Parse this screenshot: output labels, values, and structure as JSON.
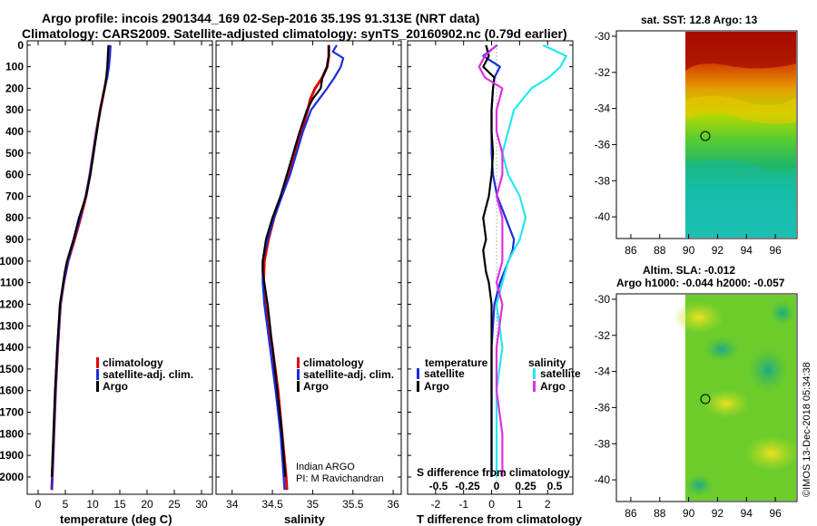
{
  "header": {
    "line1": "Argo profile: incois 2901344_169 02-Sep-2016 35.19S 91.313E (NRT data)",
    "line2": "Climatology: CARS2009. Satellite-adjusted climatology: synTS_20160902.nc (0.79d earlier)"
  },
  "colors": {
    "climatology": "#e00000",
    "satellite": "#1a2de0",
    "argo": "#000000",
    "sat_salinity": "#22e8ee",
    "argo_salinity": "#e030e0"
  },
  "depth_ticks": [
    "0",
    "100",
    "200",
    "300",
    "400",
    "500",
    "600",
    "700",
    "800",
    "900",
    "1000",
    "1100",
    "1200",
    "1300",
    "1400",
    "1500",
    "1600",
    "1700",
    "1800",
    "1900",
    "2000"
  ],
  "chart_data": [
    {
      "type": "line",
      "id": "temperature",
      "xlabel": "temperature (deg C)",
      "ylabel": "depth",
      "xlim": [
        -2,
        32
      ],
      "ylim": [
        2080,
        -20
      ],
      "xticks": [
        "0",
        "5",
        "10",
        "15",
        "20",
        "25",
        "30"
      ],
      "legend": [
        "climatology",
        "satellite-adj. clim.",
        "Argo"
      ],
      "series": [
        {
          "name": "climatology",
          "depth": [
            0,
            50,
            100,
            150,
            200,
            250,
            300,
            400,
            500,
            600,
            700,
            800,
            900,
            1000,
            1100,
            1200,
            1400,
            1600,
            1800,
            2000,
            2060
          ],
          "values": [
            13.1,
            13.0,
            12.9,
            12.6,
            12.2,
            11.8,
            11.4,
            10.7,
            10.1,
            9.5,
            8.8,
            7.8,
            6.7,
            5.5,
            4.7,
            4.1,
            3.6,
            3.2,
            2.9,
            2.6,
            2.5
          ]
        },
        {
          "name": "satellite-adj. clim.",
          "depth": [
            0,
            50,
            100,
            150,
            200,
            250,
            300,
            400,
            500,
            600,
            700,
            800,
            900,
            1000,
            1100,
            1200,
            1400,
            1600,
            1800,
            2000,
            2060
          ],
          "values": [
            13.3,
            13.2,
            13.0,
            12.7,
            12.2,
            11.8,
            11.4,
            10.7,
            10.1,
            9.5,
            8.7,
            7.7,
            6.6,
            5.5,
            4.7,
            4.1,
            3.6,
            3.2,
            2.9,
            2.6,
            2.5
          ]
        },
        {
          "name": "Argo",
          "depth": [
            0,
            50,
            100,
            150,
            200,
            250,
            300,
            400,
            500,
            600,
            700,
            800,
            900,
            1000,
            1050,
            1100,
            1200,
            1400,
            1600,
            1800,
            2000
          ],
          "values": [
            12.9,
            12.8,
            12.7,
            12.5,
            12.2,
            11.8,
            11.4,
            10.8,
            10.2,
            9.6,
            8.8,
            7.5,
            6.5,
            5.3,
            4.9,
            4.6,
            4.0,
            3.5,
            3.1,
            2.8,
            2.5
          ]
        }
      ]
    },
    {
      "type": "line",
      "id": "salinity",
      "xlabel": "salinity",
      "xlim": [
        33.8,
        36.1
      ],
      "ylim": [
        2080,
        -20
      ],
      "xticks": [
        "34",
        "34.5",
        "35",
        "35.5",
        "36"
      ],
      "legend": [
        "climatology",
        "satellite-adj. clim.",
        "Argo"
      ],
      "annotations": [
        "Indian ARGO",
        "PI: M Ravichandran"
      ],
      "series": [
        {
          "name": "climatology",
          "depth": [
            0,
            50,
            100,
            150,
            200,
            250,
            300,
            400,
            500,
            600,
            700,
            800,
            900,
            1000,
            1100,
            1200,
            1400,
            1600,
            1800,
            2000,
            2060
          ],
          "values": [
            35.2,
            35.2,
            35.18,
            35.12,
            35.03,
            34.97,
            34.94,
            34.86,
            34.78,
            34.7,
            34.61,
            34.52,
            34.45,
            34.4,
            34.39,
            34.41,
            34.5,
            34.57,
            34.62,
            34.67,
            34.68
          ]
        },
        {
          "name": "satellite-adj. clim.",
          "depth": [
            0,
            30,
            60,
            100,
            150,
            200,
            250,
            300,
            400,
            500,
            600,
            700,
            800,
            900,
            1000,
            1100,
            1200,
            1400,
            1600,
            1800,
            2000,
            2060
          ],
          "values": [
            35.3,
            35.25,
            35.38,
            35.35,
            35.27,
            35.18,
            35.08,
            34.98,
            34.88,
            34.8,
            34.72,
            34.62,
            34.52,
            34.44,
            34.38,
            34.38,
            34.4,
            34.47,
            34.54,
            34.6,
            34.64,
            34.65
          ]
        },
        {
          "name": "Argo",
          "depth": [
            0,
            50,
            100,
            150,
            200,
            250,
            300,
            400,
            500,
            600,
            700,
            800,
            900,
            1000,
            1050,
            1100,
            1200,
            1400,
            1600,
            1800,
            2000
          ],
          "values": [
            35.2,
            35.2,
            35.18,
            35.12,
            35.1,
            35.0,
            34.93,
            34.84,
            34.76,
            34.68,
            34.6,
            34.5,
            34.42,
            34.38,
            34.38,
            34.4,
            34.44,
            34.5,
            34.56,
            34.62,
            34.66
          ]
        }
      ]
    },
    {
      "type": "line",
      "id": "difference",
      "xlabel": "T difference from climatology",
      "title_bottom": "S difference from climatology",
      "xlim": [
        -3,
        2.9
      ],
      "ylim": [
        2080,
        -20
      ],
      "xticks": [
        "-2",
        "-1",
        "0",
        "1",
        "2"
      ],
      "top_ticks": [
        "-0.5",
        "-0.25",
        "0",
        "0.25",
        "0.5"
      ],
      "legend_titles": [
        "temperature",
        "salinity"
      ],
      "legend": [
        "satellite",
        "Argo",
        "satellite",
        "Argo"
      ],
      "series": [
        {
          "name": "temperature satellite",
          "depth": [
            0,
            50,
            100,
            150,
            200,
            300,
            400,
            500,
            600,
            700,
            800,
            900,
            950,
            1000,
            1050,
            1100,
            1200,
            1400,
            1600,
            1800,
            2000
          ],
          "values": [
            0.2,
            -0.3,
            0.3,
            0.1,
            0.05,
            0.0,
            0.0,
            0.0,
            0.05,
            0.2,
            0.5,
            0.8,
            0.75,
            0.6,
            0.45,
            0.3,
            0.1,
            0.0,
            0.0,
            0.0,
            0.0
          ]
        },
        {
          "name": "temperature Argo",
          "depth": [
            0,
            50,
            100,
            150,
            200,
            300,
            400,
            500,
            600,
            700,
            800,
            900,
            950,
            1000,
            1050,
            1100,
            1200,
            1400,
            1600,
            1800,
            2000
          ],
          "values": [
            -0.2,
            -0.1,
            -0.3,
            0.1,
            0.05,
            0.0,
            0.0,
            0.05,
            0.0,
            -0.1,
            -0.3,
            -0.2,
            -0.3,
            -0.25,
            -0.2,
            -0.1,
            0.0,
            0.0,
            0.0,
            0.0,
            0.0
          ]
        },
        {
          "name": "salinity satellite",
          "depth": [
            0,
            50,
            100,
            150,
            200,
            300,
            400,
            500,
            600,
            700,
            800,
            900,
            1000,
            1100,
            1200,
            1400,
            1600,
            1800,
            2000
          ],
          "values": [
            0.4,
            0.6,
            0.55,
            0.45,
            0.3,
            0.15,
            0.1,
            0.05,
            0.1,
            0.2,
            0.25,
            0.2,
            0.1,
            0.05,
            0.0,
            0.05,
            0.0,
            0.0,
            0.0
          ]
        },
        {
          "name": "salinity Argo",
          "depth": [
            0,
            50,
            100,
            150,
            200,
            300,
            400,
            500,
            600,
            700,
            800,
            900,
            1000,
            1100,
            1200,
            1400,
            1600,
            1800,
            2000
          ],
          "values": [
            0.0,
            -0.1,
            -0.15,
            -0.1,
            0.05,
            0.0,
            0.0,
            0.05,
            0.05,
            0.0,
            0.05,
            0.05,
            0.05,
            0.0,
            0.05,
            0.0,
            0.0,
            0.05,
            0.05
          ]
        }
      ]
    },
    {
      "type": "heatmap",
      "id": "sst_map",
      "title": "sat. SST: 12.8 Argo: 13",
      "xlim": [
        85,
        97.5
      ],
      "ylim": [
        -41.2,
        -29.7
      ],
      "xticks": [
        "86",
        "88",
        "90",
        "92",
        "94",
        "96"
      ],
      "yticks": [
        "-30",
        "-32",
        "-34",
        "-36",
        "-38",
        "-40"
      ],
      "argo_position": [
        91.313,
        -35.19
      ]
    },
    {
      "type": "heatmap",
      "id": "sla_map",
      "title": "Altim. SLA: -0.012",
      "subtitle": "Argo h1000: -0.044 h2000: -0.057",
      "xlim": [
        85,
        97.5
      ],
      "ylim": [
        -41.2,
        -29.7
      ],
      "xticks": [
        "86",
        "88",
        "90",
        "92",
        "94",
        "96"
      ],
      "yticks": [
        "-30",
        "-32",
        "-34",
        "-36",
        "-38",
        "-40"
      ],
      "argo_position": [
        91.313,
        -35.19
      ]
    }
  ],
  "credit": "©IMOS 13-Dec-2018 05:34:38"
}
